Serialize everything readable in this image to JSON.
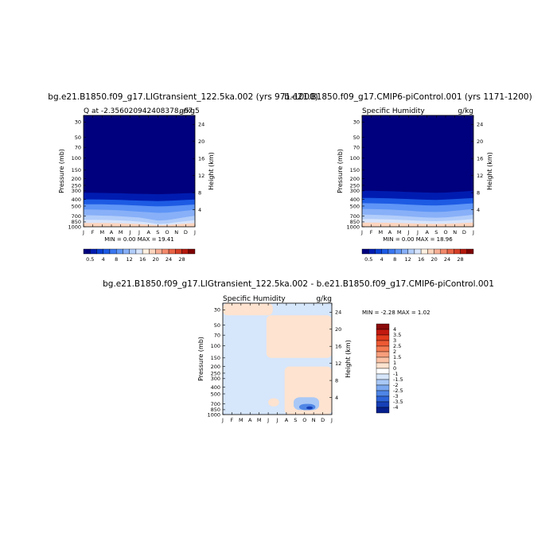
{
  "chart_data": [
    {
      "type": "heatmap",
      "title": "bg.e21.B1850.f09_g17.LIGtransient_122.5ka.002 (yrs 971-1000)",
      "subtitle_left": "Q at -2.356020942408378,-67.5",
      "subtitle_right": "g/kg",
      "ylabel": "Pressure (mb)",
      "ylabel_right": "Height (km)",
      "x": [
        "J",
        "F",
        "M",
        "A",
        "M",
        "J",
        "J",
        "A",
        "S",
        "O",
        "N",
        "D",
        "J"
      ],
      "y_ticks": [
        30,
        50,
        70,
        100,
        150,
        200,
        250,
        300,
        400,
        500,
        700,
        850,
        1000
      ],
      "y_right_ticks": [
        24,
        20,
        16,
        12,
        8,
        4
      ],
      "stats": "MIN =    0.00 MAX =   19.41",
      "colorbar": {
        "labels": [
          "0.5",
          "4",
          "8",
          "12",
          "16",
          "20",
          "24",
          "28"
        ],
        "colors": [
          "#00007e",
          "#001cb0",
          "#0a3fd0",
          "#1d5be4",
          "#3a76ef",
          "#5e95f6",
          "#88b0f8",
          "#b2cdfa",
          "#d8e5fc",
          "#fff0e0",
          "#fdd4bd",
          "#f8b095",
          "#f28a6c",
          "#e86446",
          "#d43e26",
          "#b51a0e",
          "#7e0202"
        ]
      },
      "contour_boundaries_mb": [
        {
          "level": "0.5",
          "p": [
            320,
            320,
            322,
            324,
            326,
            330,
            332,
            334,
            336,
            334,
            330,
            326,
            322
          ]
        },
        {
          "level": "4",
          "p": [
            400,
            400,
            402,
            404,
            408,
            412,
            416,
            420,
            424,
            420,
            414,
            408,
            402
          ]
        },
        {
          "level": "8",
          "p": [
            470,
            470,
            472,
            475,
            480,
            486,
            492,
            500,
            506,
            502,
            494,
            484,
            474
          ]
        },
        {
          "level": "12",
          "p": [
            560,
            562,
            565,
            570,
            578,
            590,
            602,
            614,
            628,
            622,
            604,
            586,
            566
          ]
        },
        {
          "level": "16",
          "p": [
            680,
            682,
            688,
            695,
            705,
            718,
            735,
            770,
            815,
            800,
            760,
            725,
            690
          ]
        },
        {
          "level": "20",
          "p": [
            790,
            792,
            795,
            800,
            808,
            820,
            840,
            870,
            910,
            900,
            860,
            830,
            800
          ]
        },
        {
          "level": "24",
          "p": [
            880,
            880,
            882,
            885,
            890,
            900,
            912,
            928,
            945,
            940,
            920,
            900,
            885
          ]
        }
      ]
    },
    {
      "type": "heatmap",
      "title": "b.e21.B1850.f09_g17.CMIP6-piControl.001 (yrs 1171-1200)",
      "subtitle_left": "Specific Humidity",
      "subtitle_right": "g/kg",
      "ylabel": "Pressure (mb)",
      "ylabel_right": "Height (km)",
      "x": [
        "J",
        "F",
        "M",
        "A",
        "M",
        "J",
        "J",
        "A",
        "S",
        "O",
        "N",
        "D",
        "J"
      ],
      "y_ticks": [
        30,
        50,
        70,
        100,
        150,
        200,
        250,
        300,
        400,
        500,
        700,
        850,
        1000
      ],
      "y_right_ticks": [
        24,
        20,
        16,
        12,
        8,
        4
      ],
      "stats": "MIN =    0.00 MAX =   18.96",
      "colorbar": {
        "labels": [
          "0.5",
          "4",
          "8",
          "12",
          "16",
          "20",
          "24",
          "28"
        ],
        "colors": [
          "#00007e",
          "#001cb0",
          "#0a3fd0",
          "#1d5be4",
          "#3a76ef",
          "#5e95f6",
          "#88b0f8",
          "#b2cdfa",
          "#d8e5fc",
          "#fff0e0",
          "#fdd4bd",
          "#f8b095",
          "#f28a6c",
          "#e86446",
          "#d43e26",
          "#b51a0e",
          "#7e0202"
        ]
      },
      "contour_boundaries_mb": [
        {
          "level": "0.5",
          "p": [
            300,
            300,
            302,
            305,
            308,
            312,
            315,
            318,
            320,
            318,
            312,
            306,
            300
          ]
        },
        {
          "level": "4",
          "p": [
            380,
            381,
            383,
            386,
            390,
            395,
            400,
            404,
            406,
            402,
            395,
            388,
            382
          ]
        },
        {
          "level": "8",
          "p": [
            455,
            456,
            458,
            462,
            468,
            475,
            482,
            488,
            490,
            485,
            475,
            465,
            456
          ]
        },
        {
          "level": "12",
          "p": [
            550,
            552,
            556,
            562,
            572,
            584,
            596,
            606,
            610,
            602,
            586,
            568,
            552
          ]
        },
        {
          "level": "16",
          "p": [
            665,
            668,
            674,
            682,
            694,
            708,
            722,
            734,
            738,
            730,
            712,
            690,
            668
          ]
        },
        {
          "level": "20",
          "p": [
            770,
            772,
            776,
            782,
            792,
            804,
            816,
            826,
            830,
            822,
            808,
            790,
            772
          ]
        },
        {
          "level": "24",
          "p": [
            870,
            871,
            873,
            876,
            882,
            890,
            898,
            905,
            908,
            902,
            892,
            880,
            870
          ]
        }
      ]
    },
    {
      "type": "heatmap",
      "title": "bg.e21.B1850.f09_g17.LIGtransient_122.5ka.002 - b.e21.B1850.f09_g17.CMIP6-piControl.001",
      "subtitle_left": "Specific Humidity",
      "subtitle_right": "g/kg",
      "ylabel": "Pressure (mb)",
      "ylabel_right": "Height (km)",
      "x": [
        "J",
        "F",
        "M",
        "A",
        "M",
        "J",
        "J",
        "A",
        "S",
        "O",
        "N",
        "D",
        "J"
      ],
      "y_ticks": [
        30,
        50,
        70,
        100,
        150,
        200,
        250,
        300,
        400,
        500,
        700,
        850,
        1000
      ],
      "y_right_ticks": [
        24,
        20,
        16,
        12,
        8,
        4
      ],
      "stats": "MIN =   -2.28 MAX =    1.02",
      "colorbar": {
        "labels": [
          "4",
          "3.5",
          "3",
          "2.5",
          "2",
          "1.5",
          "1",
          "0",
          "-1",
          "-1.5",
          "-2",
          "-2.5",
          "-3",
          "-3.5",
          "-4"
        ],
        "colors": [
          "#8a0a0a",
          "#c21a10",
          "#e03b1c",
          "#ee5a34",
          "#f47b52",
          "#f89f7c",
          "#fbc2a6",
          "#fde3d0",
          "#ffffff",
          "#d6e6fb",
          "#a9c8f6",
          "#7ba8ef",
          "#4f86e6",
          "#2d63d8",
          "#1640b8",
          "#061f8c"
        ]
      },
      "diff_regions": [
        {
          "value": "0 to 1",
          "month": [
            0,
            5.5
          ],
          "p": [
            24,
            36
          ]
        },
        {
          "value": "0 to 1",
          "month": [
            4.8,
            12
          ],
          "p": [
            36,
            150
          ]
        },
        {
          "value": "0 to 1",
          "month": [
            6.8,
            12
          ],
          "p": [
            200,
            1000
          ]
        },
        {
          "value": "0 to 1",
          "month": [
            5.0,
            6.2
          ],
          "p": [
            580,
            760
          ]
        },
        {
          "value": "-1 to -1.5",
          "month": [
            7.8,
            10.6
          ],
          "p": [
            560,
            860
          ]
        },
        {
          "value": "-1.5 to -2",
          "month": [
            8.4,
            10.2
          ],
          "p": [
            700,
            860
          ]
        },
        {
          "value": "-2 to -2.5",
          "month": [
            9.2,
            9.9
          ],
          "p": [
            760,
            840
          ]
        }
      ]
    }
  ]
}
